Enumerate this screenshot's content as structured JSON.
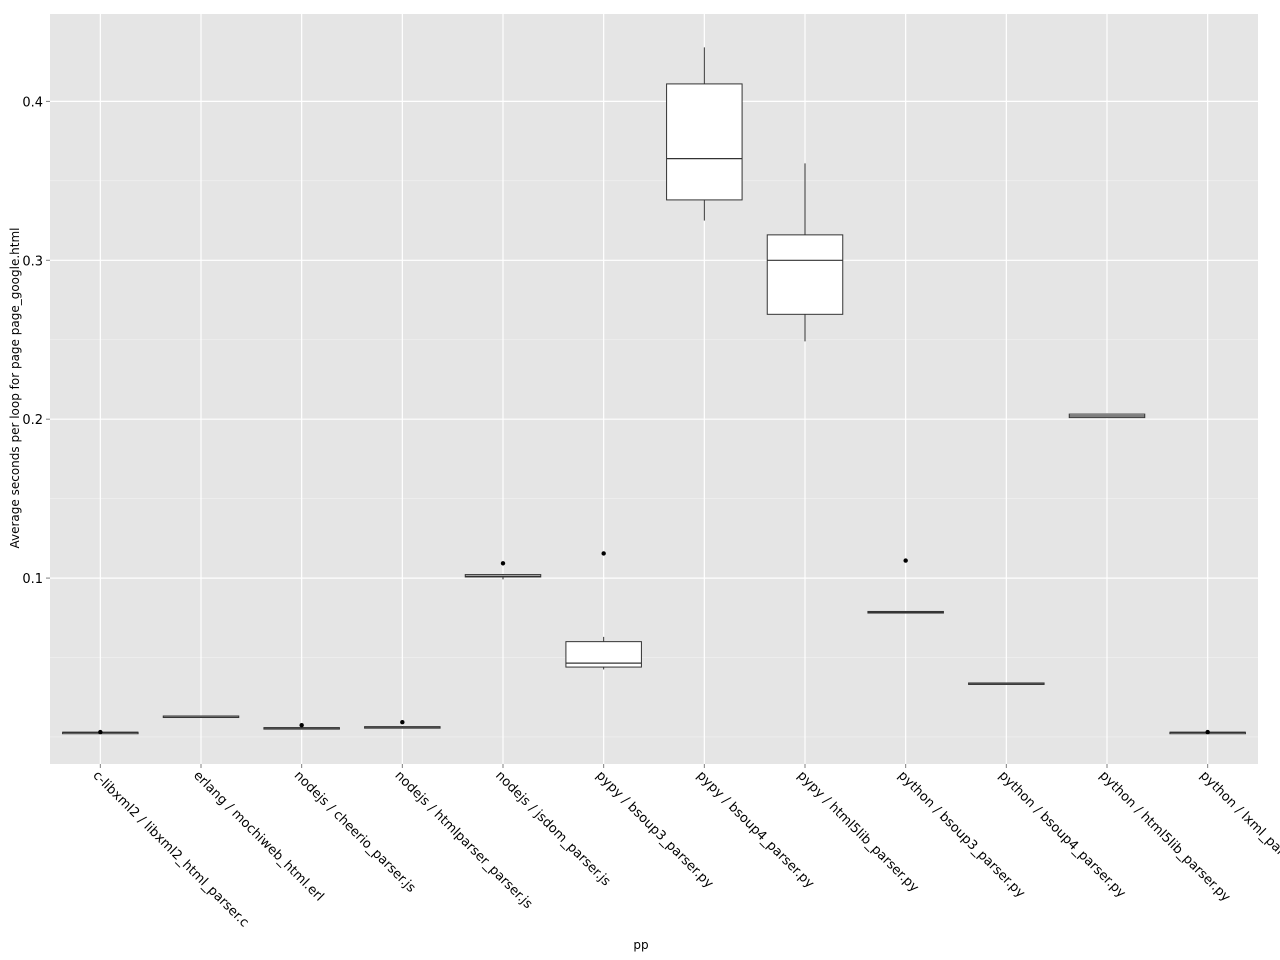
{
  "chart_data": {
    "type": "box",
    "title": "",
    "xlabel": "pp",
    "ylabel": "Average seconds per loop for page page_google.html",
    "ylim": [
      -0.017,
      0.455
    ],
    "y_ticks": [
      "0.1",
      "0.2",
      "0.3",
      "0.4"
    ],
    "y_tick_values": [
      0.1,
      0.2,
      0.3,
      0.4
    ],
    "y_minor_values": [
      0.0,
      0.05,
      0.15,
      0.25,
      0.35
    ],
    "grid": true,
    "legend": "none",
    "colors": {
      "panel": "#e5e5e5",
      "grid": "#ffffff",
      "box_fill": "#ffffff",
      "box_stroke": "#333333",
      "outlier": "#000000"
    },
    "categories": [
      "c-libxml2 / libxml2_html_parser.c",
      "erlang / mochiweb_html.erl",
      "nodejs / cheerio_parser.js",
      "nodejs / htmlparser_parser.js",
      "nodejs / jsdom_parser.js",
      "pypy / bsoup3_parser.py",
      "pypy / bsoup4_parser.py",
      "pypy / html5lib_parser.py",
      "python / bsoup3_parser.py",
      "python / bsoup4_parser.py",
      "python / html5lib_parser.py",
      "python / lxml_parser.py"
    ],
    "boxes": [
      {
        "min": 0.0028,
        "q1": 0.0028,
        "median": 0.0029,
        "q3": 0.003,
        "max": 0.0031,
        "outliers": [
          0.0031
        ]
      },
      {
        "min": 0.013,
        "q1": 0.013,
        "median": 0.0131,
        "q3": 0.0132,
        "max": 0.0133,
        "outliers": []
      },
      {
        "min": 0.0055,
        "q1": 0.0055,
        "median": 0.0057,
        "q3": 0.0059,
        "max": 0.0061,
        "outliers": [
          0.0074
        ]
      },
      {
        "min": 0.0061,
        "q1": 0.0061,
        "median": 0.0063,
        "q3": 0.0065,
        "max": 0.0068,
        "outliers": [
          0.0093
        ]
      },
      {
        "min": 0.0992,
        "q1": 0.1007,
        "median": 0.1012,
        "q3": 0.1022,
        "max": 0.1025,
        "outliers": [
          0.1093
        ]
      },
      {
        "min": 0.0425,
        "q1": 0.044,
        "median": 0.0465,
        "q3": 0.06,
        "max": 0.063,
        "outliers": [
          0.1155
        ]
      },
      {
        "min": 0.325,
        "q1": 0.338,
        "median": 0.364,
        "q3": 0.411,
        "max": 0.434,
        "outliers": []
      },
      {
        "min": 0.249,
        "q1": 0.266,
        "median": 0.3,
        "q3": 0.316,
        "max": 0.361,
        "outliers": []
      },
      {
        "min": 0.078,
        "q1": 0.078,
        "median": 0.0785,
        "q3": 0.079,
        "max": 0.0792,
        "outliers": [
          0.111
        ]
      },
      {
        "min": 0.0335,
        "q1": 0.0335,
        "median": 0.0338,
        "q3": 0.034,
        "max": 0.0342,
        "outliers": []
      },
      {
        "min": 0.201,
        "q1": 0.201,
        "median": 0.202,
        "q3": 0.2032,
        "max": 0.2035,
        "outliers": []
      },
      {
        "min": 0.0028,
        "q1": 0.0028,
        "median": 0.0029,
        "q3": 0.003,
        "max": 0.0031,
        "outliers": [
          0.0031
        ]
      }
    ]
  }
}
